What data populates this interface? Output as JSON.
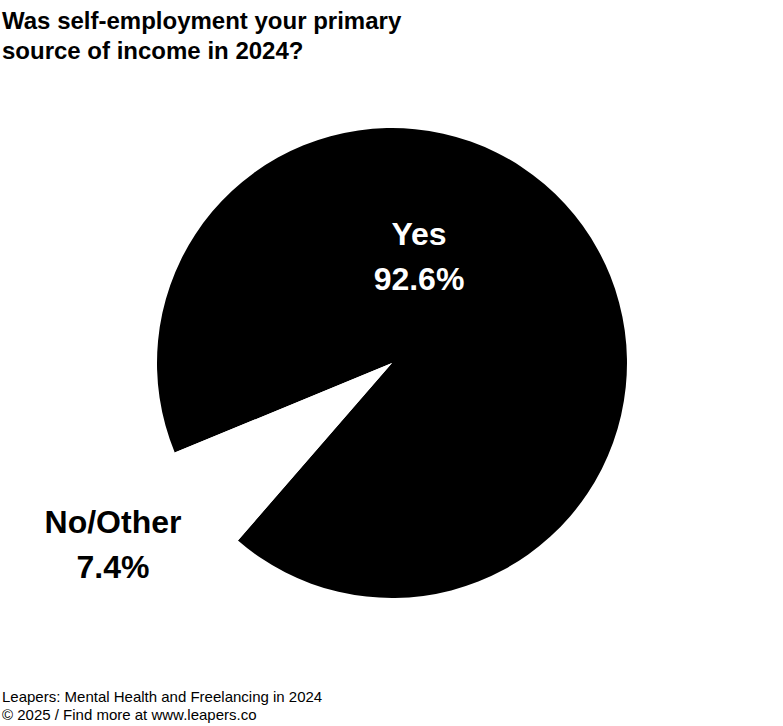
{
  "chart_data": {
    "type": "pie",
    "title": "Was self-employment your primary source of income in 2024?",
    "categories": [
      "Yes",
      "No/Other"
    ],
    "values": [
      92.6,
      7.4
    ],
    "value_labels": [
      "92.6%",
      "7.4%"
    ],
    "colors": [
      "#000000",
      "#ffffff"
    ],
    "data_labels": true,
    "source": "Leapers: Mental Health and Freelancing in 2024",
    "note": "© 2025 / Find more at www.leapers.co"
  }
}
